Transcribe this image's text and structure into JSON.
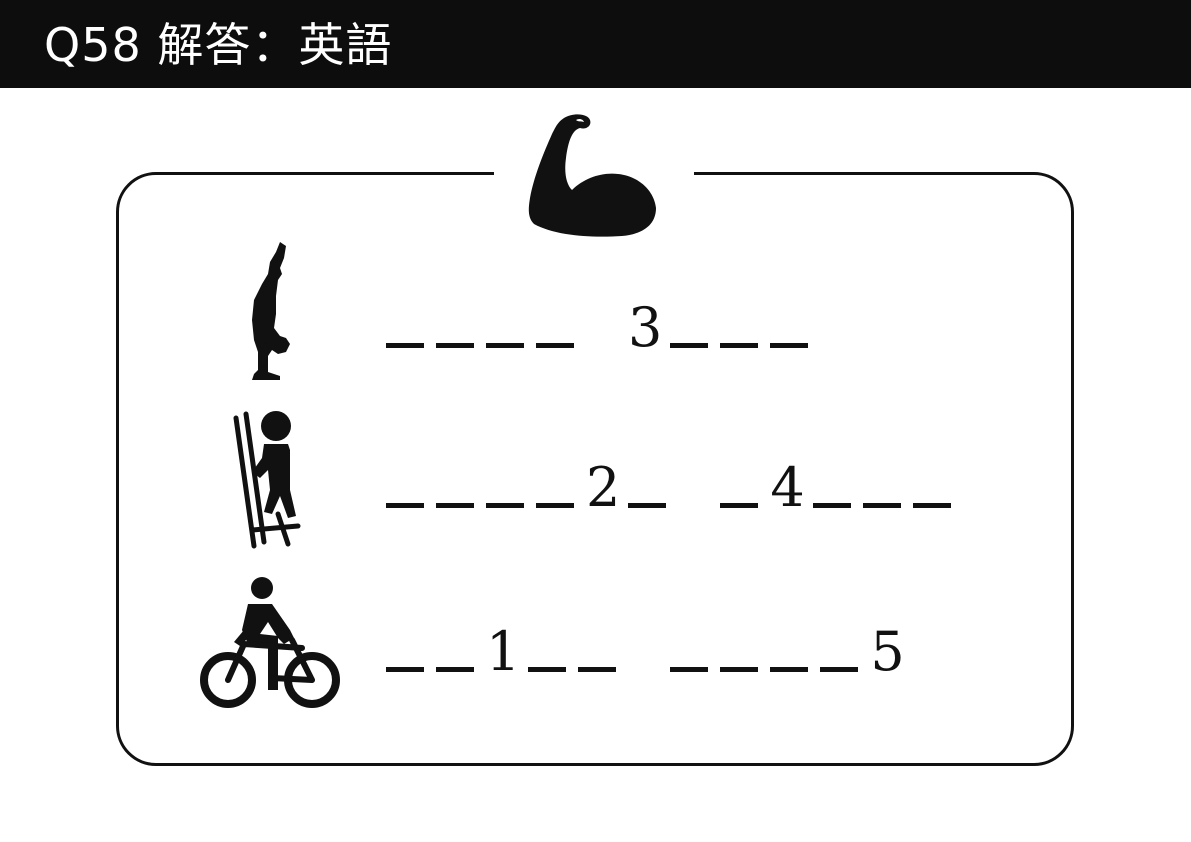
{
  "header": {
    "title": "Q58 解答：英語"
  },
  "emblem": {
    "icon": "flexed-bicep-icon"
  },
  "rows": [
    {
      "icon": "handstand-icon",
      "words": [
        {
          "cells": [
            "",
            "",
            "",
            ""
          ]
        },
        {
          "cells": [
            "3",
            "",
            "",
            ""
          ]
        }
      ]
    },
    {
      "icon": "stilt-walker-icon",
      "words": [
        {
          "cells": [
            "",
            "",
            "",
            "",
            "2",
            ""
          ]
        },
        {
          "cells": [
            "",
            "4",
            "",
            "",
            ""
          ]
        }
      ]
    },
    {
      "icon": "cyclist-icon",
      "words": [
        {
          "cells": [
            "",
            "",
            "1",
            "",
            ""
          ]
        },
        {
          "cells": [
            "",
            "",
            "",
            "",
            "5"
          ]
        }
      ]
    }
  ],
  "colors": {
    "header_bg": "#0d0d0d",
    "ink": "#111111",
    "page_bg": "#ffffff"
  }
}
